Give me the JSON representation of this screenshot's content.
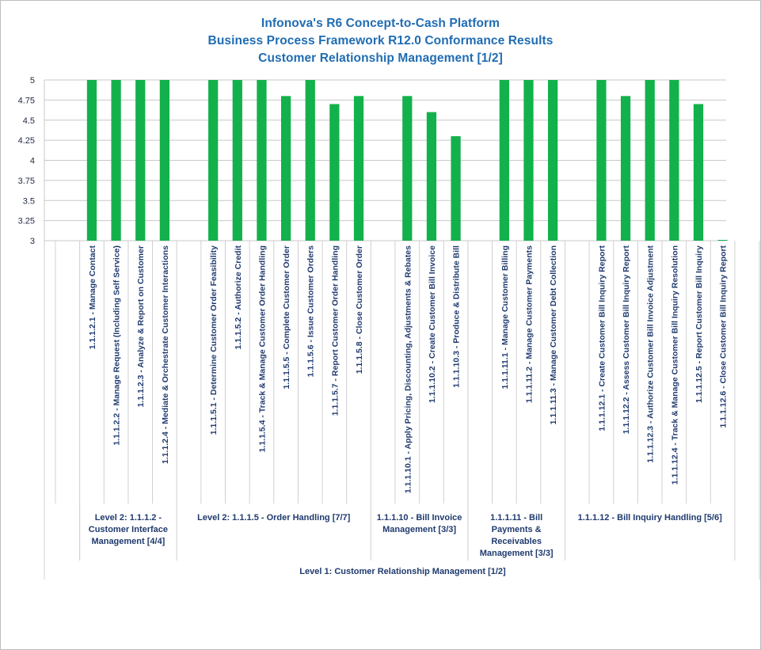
{
  "chart_data": {
    "type": "bar",
    "title": [
      "Infonova's R6 Concept-to-Cash Platform",
      "Business Process Framework R12.0 Conformance Results",
      "Customer Relationship Management [1/2]"
    ],
    "ylim": [
      3,
      5
    ],
    "yticks": [
      "3",
      "3.25",
      "3.5",
      "3.75",
      "4",
      "4.25",
      "4.5",
      "4.75",
      "5"
    ],
    "grid": true,
    "bar_color": "#13b14b",
    "categories": [
      "",
      "1.1.1.2.1 - Manage Contact",
      "1.1.1.2.2 - Manage Request (Including Self Service)",
      "1.1.1.2.3 - Analyze & Report on Customer",
      "1.1.1.2.4 - Mediate & Orchestrate Customer Interactions",
      "",
      "1.1.1.5.1 - Determine Customer Order Feasibility",
      "1.1.1.5.2 - Authorize Credit",
      "1.1.1.5.4 - Track & Manage Customer Order Handling",
      "1.1.1.5.5 - Complete Customer Order",
      "1.1.1.5.6 - Issue Customer Orders",
      "1.1.1.5.7 - Report Customer Order Handling",
      "1.1.1.5.8 - Close Customer Order",
      "",
      "1.1.1.10.1 - Apply Pricing, Discounting, Adjustments & Rebates",
      "1.1.1.10.2 - Create Customer Bill Invoice",
      "1.1.1.10.3 - Produce & Distribute Bill",
      "",
      "1.1.1.11.1 - Manage Customer Billing",
      "1.1.1.11.2 - Manage Customer Payments",
      "1.1.1.11.3 - Manage Customer Debt Collection",
      "",
      "1.1.1.12.1 - Create Customer Bill Inquiry Report",
      "1.1.1.12.2 - Assess Customer Bill Inquiry Report",
      "1.1.1.12.3 - Authorize Customer Bill Invoice Adjustment",
      "1.1.1.12.4 - Track & Manage Customer Bill Inquiry Resolution",
      "1.1.1.12.5 - Report Customer Bill Inquiry",
      "1.1.1.12.6 - Close Customer Bill Inquiry Report"
    ],
    "values": [
      null,
      5,
      5,
      5,
      5,
      null,
      5,
      5,
      5,
      4.8,
      5,
      4.7,
      4.8,
      null,
      4.8,
      4.6,
      4.3,
      null,
      5,
      5,
      5,
      null,
      5,
      4.8,
      5,
      5,
      4.7,
      3
    ],
    "groups": [
      {
        "label": "Level 2: 1.1.1.2 - Customer Interface Management [4/4]",
        "start": 1,
        "end": 4
      },
      {
        "label": "Level 2: 1.1.1.5 - Order Handling [7/7]",
        "start": 5,
        "end": 12
      },
      {
        "label": "1.1.1.10 - Bill Invoice Management [3/3]",
        "start": 13,
        "end": 16
      },
      {
        "label": "1.1.1.11 - Bill Payments & Receivables Management [3/3]",
        "start": 17,
        "end": 20
      },
      {
        "label": "1.1.1.12 - Bill Inquiry Handling [5/6]",
        "start": 21,
        "end": 27
      }
    ],
    "level1_label": "Level 1: Customer Relationship Management [1/2]"
  }
}
